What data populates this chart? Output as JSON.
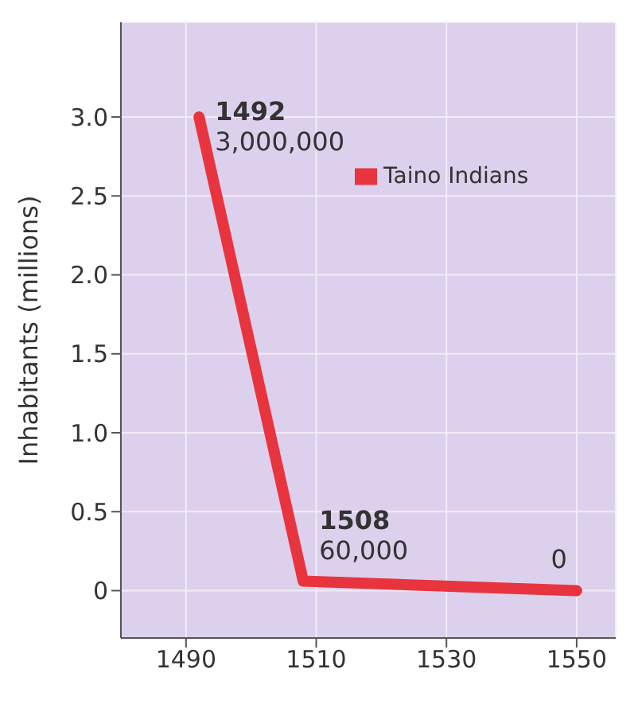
{
  "chart_data": {
    "type": "line",
    "ylabel": "Inhabitants (millions)",
    "x": [
      1492,
      1508,
      1550
    ],
    "series": [
      {
        "name": "Taino Indians",
        "color": "#e8343f",
        "values": [
          3.0,
          0.06,
          0
        ]
      }
    ],
    "annotations": [
      {
        "text": "1492",
        "x": 1492,
        "y": 3.0
      },
      {
        "text": "3,000,000",
        "x": 1492,
        "y": 3.0
      },
      {
        "text": "1508",
        "x": 1508,
        "y": 0.06
      },
      {
        "text": "60,000",
        "x": 1508,
        "y": 0.06
      },
      {
        "text": "0",
        "x": 1550,
        "y": 0
      }
    ],
    "xlim": [
      1480,
      1556
    ],
    "xticks": [
      1490,
      1510,
      1530,
      1550
    ],
    "ylim": [
      -0.3,
      3.6
    ],
    "yticks": [
      {
        "value": 0,
        "label": "0"
      },
      {
        "value": 0.5,
        "label": "0.5"
      },
      {
        "value": 1,
        "label": "1.0"
      },
      {
        "value": 1.5,
        "label": "1.5"
      },
      {
        "value": 2,
        "label": "2.0"
      },
      {
        "value": 2.5,
        "label": "2.5"
      },
      {
        "value": 3,
        "label": "3.0"
      }
    ],
    "grid": true,
    "legend": "top right",
    "marker": "none",
    "line_style": "solid"
  }
}
